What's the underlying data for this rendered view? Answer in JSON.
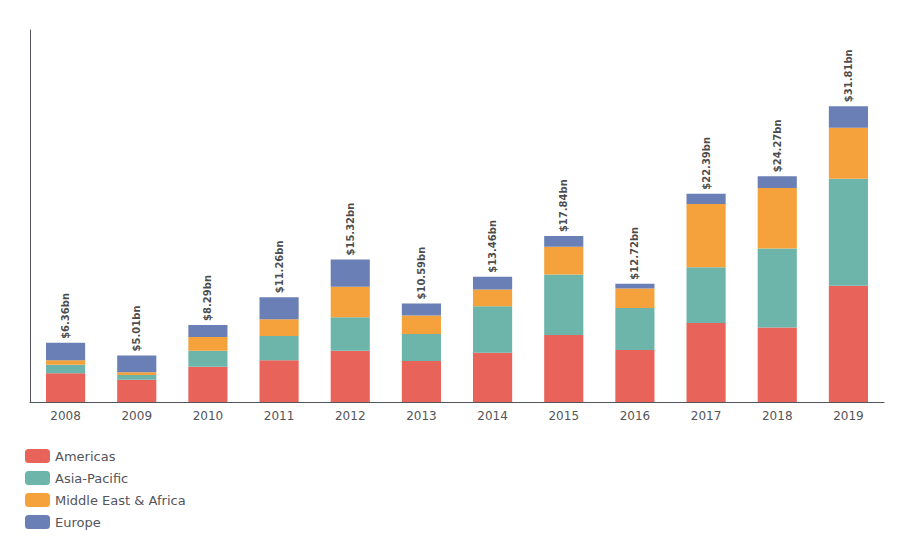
{
  "chart_data": {
    "type": "bar",
    "stacked": true,
    "categories": [
      "2008",
      "2009",
      "2010",
      "2011",
      "2012",
      "2013",
      "2014",
      "2015",
      "2016",
      "2017",
      "2018",
      "2019"
    ],
    "series": [
      {
        "name": "Americas",
        "color": "#E8635A",
        "values": [
          3.1,
          2.4,
          3.8,
          4.5,
          5.5,
          4.4,
          5.3,
          7.2,
          5.6,
          8.5,
          8.0,
          12.5
        ]
      },
      {
        "name": "Asia-Pacific",
        "color": "#6DB5AA",
        "values": [
          0.9,
          0.5,
          1.7,
          2.6,
          3.6,
          2.9,
          5.0,
          6.5,
          4.5,
          6.0,
          8.5,
          11.5
        ]
      },
      {
        "name": "Middle East & Africa",
        "color": "#F5A23C",
        "values": [
          0.5,
          0.3,
          1.5,
          1.8,
          3.3,
          2.0,
          1.8,
          3.0,
          2.1,
          6.8,
          6.5,
          5.5
        ]
      },
      {
        "name": "Europe",
        "color": "#6A7FB5",
        "values": [
          1.86,
          1.81,
          1.29,
          2.36,
          2.92,
          1.29,
          1.36,
          1.14,
          0.52,
          1.09,
          1.27,
          2.31
        ]
      }
    ],
    "annotations": [
      {
        "x": "2008",
        "y": 6.36,
        "text": "$6.36bn"
      },
      {
        "x": "2009",
        "y": 5.01,
        "text": "$5.01bn"
      },
      {
        "x": "2010",
        "y": 8.29,
        "text": "$8.29bn"
      },
      {
        "x": "2011",
        "y": 11.26,
        "text": "$11.26bn"
      },
      {
        "x": "2012",
        "y": 15.32,
        "text": "$15.32bn"
      },
      {
        "x": "2013",
        "y": 10.59,
        "text": "$10.59bn"
      },
      {
        "x": "2014",
        "y": 13.46,
        "text": "$13.46bn"
      },
      {
        "x": "2015",
        "y": 17.84,
        "text": "$17.84bn"
      },
      {
        "x": "2016",
        "y": 12.72,
        "text": "$12.72bn"
      },
      {
        "x": "2017",
        "y": 22.39,
        "text": "$22.39bn"
      },
      {
        "x": "2018",
        "y": 24.27,
        "text": "$24.27bn"
      },
      {
        "x": "2019",
        "y": 31.81,
        "text": "$31.81bn"
      }
    ],
    "ylim": [
      0,
      40
    ],
    "tick_labels": "x",
    "grid": false,
    "legend": "bottom-left"
  }
}
